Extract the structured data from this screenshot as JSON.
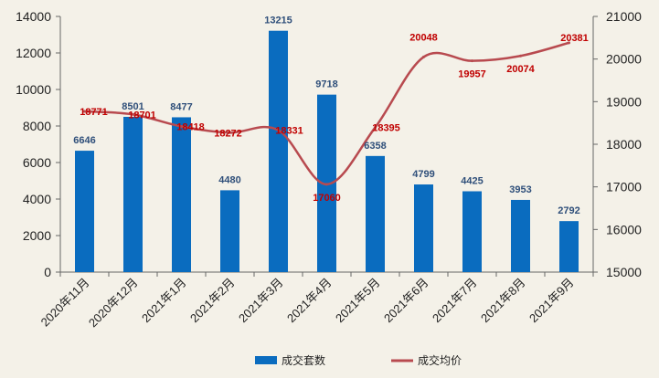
{
  "chart_data": {
    "type": "bar+line",
    "title": "",
    "categories": [
      "2020年11月",
      "2020年12月",
      "2021年1月",
      "2021年2月",
      "2021年3月",
      "2021年4月",
      "2021年5月",
      "2021年6月",
      "2021年7月",
      "2021年8月",
      "2021年9月"
    ],
    "series": [
      {
        "name": "成交套数",
        "type": "bar",
        "axis": "left",
        "color": "#0a6cbf",
        "values": [
          6646,
          8501,
          8477,
          4480,
          13215,
          9718,
          6358,
          4799,
          4425,
          3953,
          2792
        ],
        "labels": [
          "6646",
          "8501",
          "8477",
          "4480",
          "13215",
          "9718",
          "6358",
          "4799",
          "4425",
          "3953",
          "2792"
        ]
      },
      {
        "name": "成交均价",
        "type": "line",
        "axis": "right",
        "color": "#b84a4f",
        "label_color": "#c00000",
        "values": [
          18771,
          18701,
          18418,
          18272,
          18331,
          17060,
          18395,
          20048,
          19957,
          20074,
          20381
        ],
        "labels": [
          "18771",
          "18701",
          "18418",
          "18272",
          "18331",
          "17060",
          "18395",
          "20048",
          "19957",
          "20074",
          "20381"
        ]
      }
    ],
    "y_left": {
      "min": 0,
      "max": 14000,
      "step": 2000,
      "ticks": [
        "0",
        "2000",
        "4000",
        "6000",
        "8000",
        "10000",
        "12000",
        "14000"
      ]
    },
    "y_right": {
      "min": 15000,
      "max": 21000,
      "step": 1000,
      "ticks": [
        "15000",
        "16000",
        "17000",
        "18000",
        "19000",
        "20000",
        "21000"
      ]
    },
    "grid": false,
    "legend_position": "bottom"
  }
}
